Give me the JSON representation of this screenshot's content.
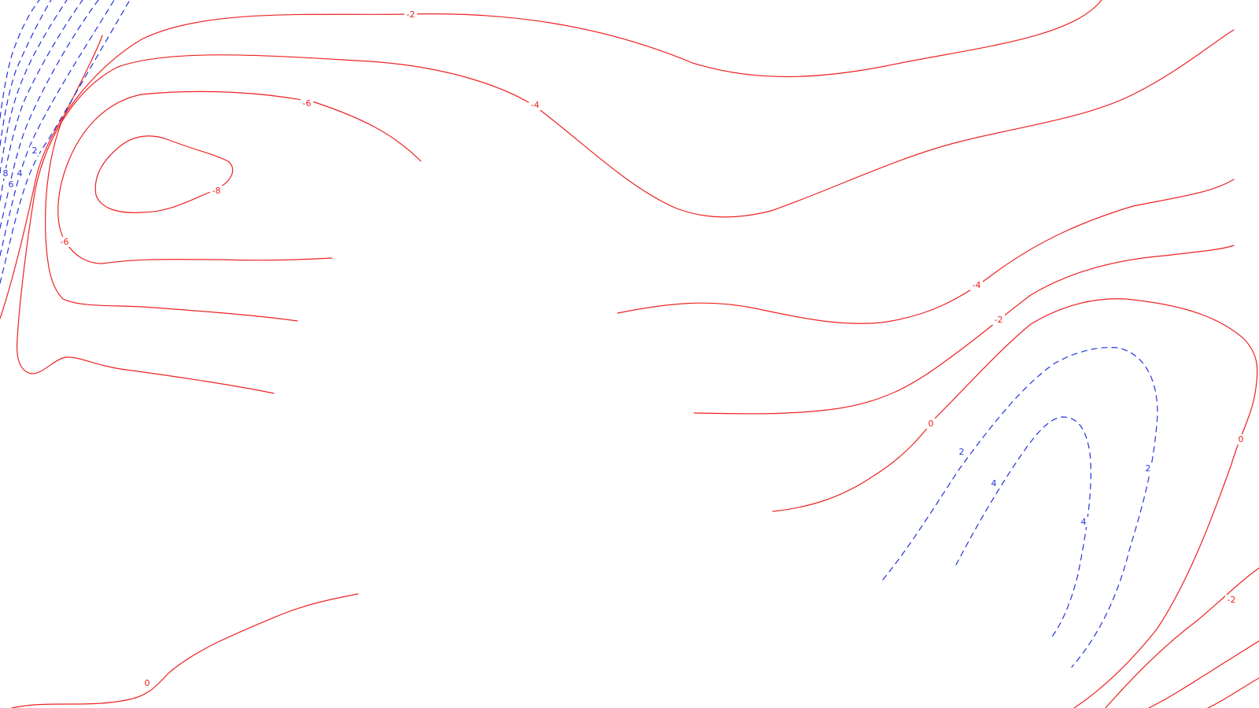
{
  "colors": {
    "negative_contour": "#ee2222",
    "positive_contour": "#2233dd",
    "background": "#ffffff"
  },
  "contour_labels": {
    "neg_2_top": "-2",
    "neg_4_top": "-4",
    "neg_6_top": "-6",
    "neg_8": "-8",
    "neg_6_left": "-6",
    "neg_4_right": "-4",
    "neg_2_right": "-2",
    "zero_mid_right": "0",
    "zero_far_right": "0",
    "neg_2_bottom_right": "-2",
    "zero_bottom_left": "0",
    "pos_2_inner": "2",
    "pos_4_inner": "4",
    "pos_4_right": "4",
    "pos_2_right": "2",
    "pos_2_left_edge": "2",
    "pos_8_left_edge": "8",
    "pos_6_left_edge": "6",
    "pos_4_left_edge": "4"
  }
}
